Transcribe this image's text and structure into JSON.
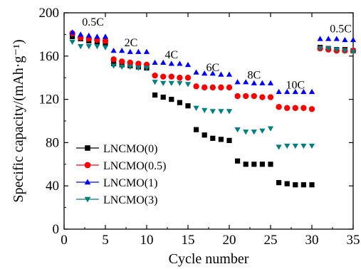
{
  "chart_data": {
    "type": "scatter",
    "xlabel": "Cycle number",
    "ylabel": "Specific capacity/(mAh·g⁻¹)",
    "xlim": [
      0,
      35
    ],
    "ylim": [
      0,
      200
    ],
    "xticks": [
      0,
      5,
      10,
      15,
      20,
      25,
      30,
      35
    ],
    "yticks": [
      0,
      40,
      80,
      120,
      160,
      200
    ],
    "grid": false,
    "legend": "center-left",
    "annotations": [
      {
        "text": "0.5C",
        "x": 3.5,
        "y": 188
      },
      {
        "text": "2C",
        "x": 8.1,
        "y": 169
      },
      {
        "text": "4C",
        "x": 13.0,
        "y": 158
      },
      {
        "text": "6C",
        "x": 18.0,
        "y": 146
      },
      {
        "text": "8C",
        "x": 23.0,
        "y": 139
      },
      {
        "text": "10C",
        "x": 28.0,
        "y": 130
      },
      {
        "text": "0.5C",
        "x": 33.5,
        "y": 182
      }
    ],
    "series": [
      {
        "name": "LNCMO(0)",
        "marker": "square",
        "color": "#000000",
        "x": [
          1,
          2,
          3,
          4,
          5,
          6,
          7,
          8,
          9,
          10,
          11,
          12,
          13,
          14,
          15,
          16,
          17,
          18,
          19,
          20,
          21,
          22,
          23,
          24,
          25,
          26,
          27,
          28,
          29,
          30,
          31,
          32,
          33,
          34,
          35
        ],
        "y": [
          178,
          176,
          174,
          173,
          172,
          153,
          152,
          151,
          150,
          149,
          124,
          122,
          120,
          117,
          114,
          92,
          87,
          84,
          83,
          82,
          63,
          60,
          60,
          60,
          60,
          43,
          42,
          41,
          41,
          41,
          168,
          167,
          166,
          166,
          165
        ]
      },
      {
        "name": "LNCMO(0.5)",
        "marker": "circle",
        "color": "#ff0000",
        "x": [
          1,
          2,
          3,
          4,
          5,
          6,
          7,
          8,
          9,
          10,
          11,
          12,
          13,
          14,
          15,
          16,
          17,
          18,
          19,
          20,
          21,
          22,
          23,
          24,
          25,
          26,
          27,
          28,
          29,
          30,
          31,
          32,
          33,
          34,
          35
        ],
        "y": [
          181,
          177,
          176,
          175,
          174,
          157,
          155,
          154,
          153,
          152,
          142,
          141,
          141,
          140,
          140,
          132,
          131,
          131,
          131,
          131,
          123,
          123,
          123,
          122,
          122,
          113,
          112,
          112,
          112,
          111,
          167,
          166,
          165,
          165,
          165
        ]
      },
      {
        "name": "LNCMO(1)",
        "marker": "triangle-up",
        "color": "#0000ff",
        "x": [
          1,
          2,
          3,
          4,
          5,
          6,
          7,
          8,
          9,
          10,
          11,
          12,
          13,
          14,
          15,
          16,
          17,
          18,
          19,
          20,
          21,
          22,
          23,
          24,
          25,
          26,
          27,
          28,
          29,
          30,
          31,
          32,
          33,
          34,
          35
        ],
        "y": [
          182,
          180,
          179,
          178,
          178,
          165,
          165,
          164,
          164,
          164,
          154,
          154,
          153,
          153,
          152,
          145,
          144,
          144,
          143,
          143,
          136,
          136,
          135,
          135,
          135,
          127,
          127,
          127,
          127,
          127,
          176,
          176,
          176,
          175,
          175
        ]
      },
      {
        "name": "LNCMO(3)",
        "marker": "triangle-down",
        "color": "#008080",
        "x": [
          1,
          2,
          3,
          4,
          5,
          6,
          7,
          8,
          9,
          10,
          11,
          12,
          13,
          14,
          15,
          16,
          17,
          18,
          19,
          20,
          21,
          22,
          23,
          24,
          25,
          26,
          27,
          28,
          29,
          30,
          31,
          32,
          33,
          34,
          35
        ],
        "y": [
          173,
          169,
          169,
          169,
          168,
          151,
          150,
          150,
          149,
          149,
          136,
          135,
          135,
          135,
          134,
          112,
          110,
          109,
          109,
          109,
          92,
          90,
          90,
          91,
          93,
          76,
          77,
          77,
          77,
          77,
          167,
          167,
          166,
          165,
          164
        ]
      }
    ]
  }
}
